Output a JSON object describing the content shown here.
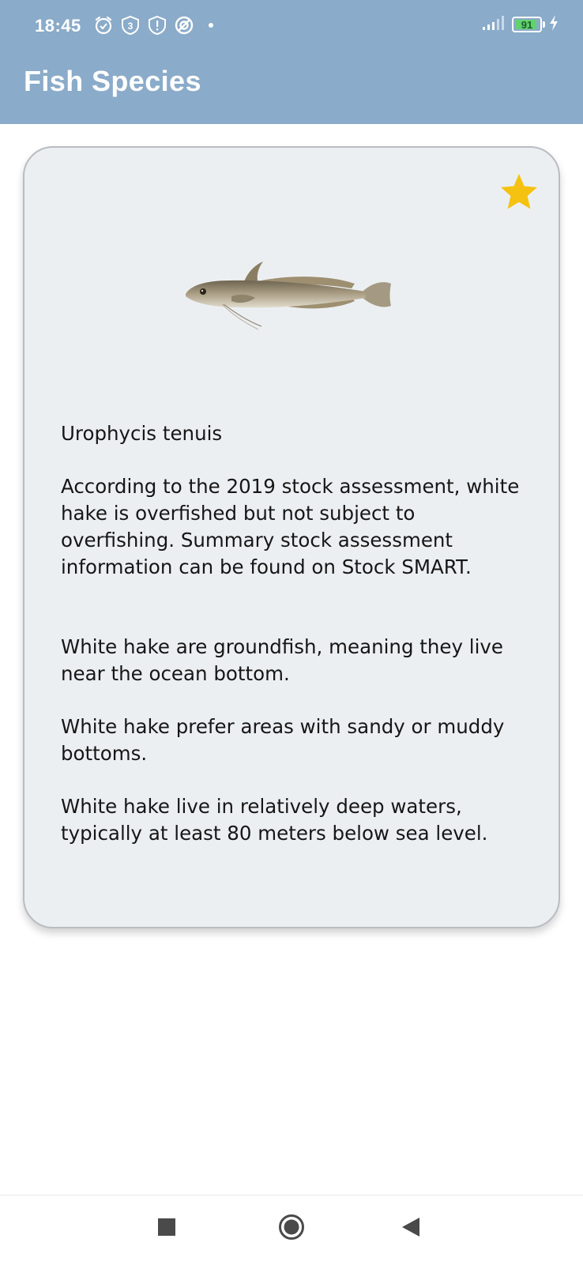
{
  "status_bar": {
    "time": "18:45",
    "battery_level": "91",
    "battery_fraction": 0.91,
    "left_icons": [
      "alarm-icon",
      "badge-3-icon",
      "shield-alert-icon",
      "data-saver-icon",
      "dot-icon"
    ],
    "notification_count": "3",
    "right_icons": [
      "signal-icon",
      "battery-icon",
      "charging-bolt-icon"
    ]
  },
  "app_bar": {
    "title": "Fish Species"
  },
  "colors": {
    "app_bar": "#8aabc9",
    "card_background": "#eceff2",
    "star": "#f5c211",
    "battery_fill": "#5fd36c"
  },
  "species": {
    "image_icon": "fish-illustration",
    "favorite_icon": "star-icon",
    "favorited": true,
    "scientific_name": "Urophycis tenuis",
    "stock_status": "According to the 2019 stock assessment, white hake is overfished but not subject to overfishing. Summary stock assessment information can be found on Stock SMART.",
    "facts": [
      "White hake are groundfish, meaning they live near the ocean bottom.",
      "White hake prefer areas with sandy or muddy bottoms.",
      "White hake live in relatively deep waters, typically at least 80 meters below sea level."
    ]
  },
  "nav_bar": {
    "buttons": [
      "recent-apps-icon",
      "home-icon",
      "back-icon"
    ]
  }
}
